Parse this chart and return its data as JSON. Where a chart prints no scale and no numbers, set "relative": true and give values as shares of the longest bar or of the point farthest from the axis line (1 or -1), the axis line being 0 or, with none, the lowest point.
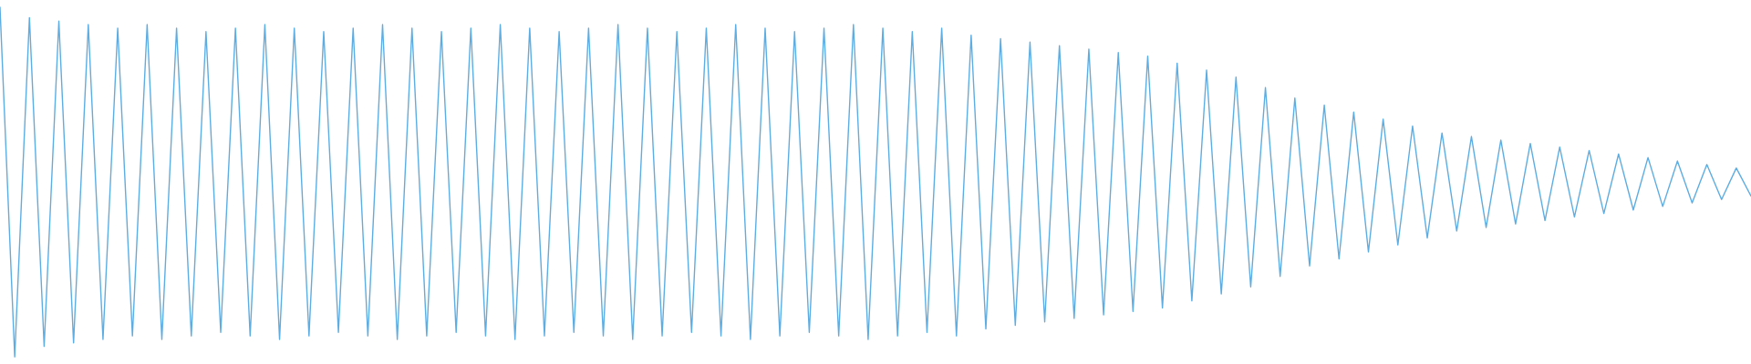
{
  "chart_data": {
    "type": "line",
    "relative": true,
    "categories": [
      null,
      null,
      null,
      null,
      null,
      null,
      null,
      null,
      null,
      null,
      null,
      null,
      null,
      null,
      null,
      null,
      null,
      null,
      null,
      null,
      null,
      null,
      null,
      null,
      null,
      null,
      null,
      null,
      null,
      null,
      null,
      null,
      null,
      null,
      null,
      null,
      null,
      null,
      null,
      null,
      null,
      null,
      null,
      null,
      null,
      null,
      null,
      null,
      null,
      null,
      null,
      null,
      null,
      null,
      null,
      null,
      null,
      null,
      null,
      null,
      null,
      null,
      null,
      null,
      null,
      null,
      null,
      null,
      null,
      null,
      null,
      null,
      null,
      null,
      null,
      null,
      null,
      null,
      null,
      null,
      null,
      null,
      null,
      null,
      null,
      null,
      null,
      null,
      null,
      null,
      null,
      null,
      null,
      null,
      null,
      null,
      null,
      null,
      null,
      null,
      null,
      null,
      null,
      null,
      null,
      null,
      null,
      null,
      null,
      null,
      null,
      null,
      null,
      null,
      null,
      null,
      null,
      null,
      null,
      null
    ],
    "series": [
      {
        "color": "#5dade2",
        "values": [
          1.0,
          0.0,
          0.97,
          0.03,
          0.96,
          0.04,
          0.95,
          0.05,
          0.94,
          0.06,
          0.95,
          0.05,
          0.94,
          0.06,
          0.93,
          0.07,
          0.94,
          0.06,
          0.95,
          0.05,
          0.94,
          0.06,
          0.93,
          0.07,
          0.94,
          0.06,
          0.95,
          0.05,
          0.94,
          0.06,
          0.93,
          0.07,
          0.94,
          0.06,
          0.95,
          0.05,
          0.94,
          0.06,
          0.93,
          0.07,
          0.94,
          0.06,
          0.95,
          0.05,
          0.94,
          0.06,
          0.93,
          0.07,
          0.94,
          0.06,
          0.95,
          0.05,
          0.94,
          0.06,
          0.93,
          0.07,
          0.94,
          0.06,
          0.95,
          0.05,
          0.94,
          0.06,
          0.93,
          0.07,
          0.94,
          0.06,
          0.92,
          0.08,
          0.91,
          0.09,
          0.9,
          0.1,
          0.89,
          0.11,
          0.88,
          0.12,
          0.87,
          0.13,
          0.86,
          0.14,
          0.84,
          0.16,
          0.82,
          0.18,
          0.8,
          0.2,
          0.77,
          0.23,
          0.74,
          0.26,
          0.72,
          0.28,
          0.7,
          0.3,
          0.68,
          0.32,
          0.66,
          0.34,
          0.64,
          0.36,
          0.63,
          0.37,
          0.62,
          0.38,
          0.61,
          0.39,
          0.6,
          0.4,
          0.59,
          0.41,
          0.58,
          0.42,
          0.57,
          0.43,
          0.56,
          0.44,
          0.55,
          0.45,
          0.54,
          0.46
        ]
      }
    ]
  }
}
